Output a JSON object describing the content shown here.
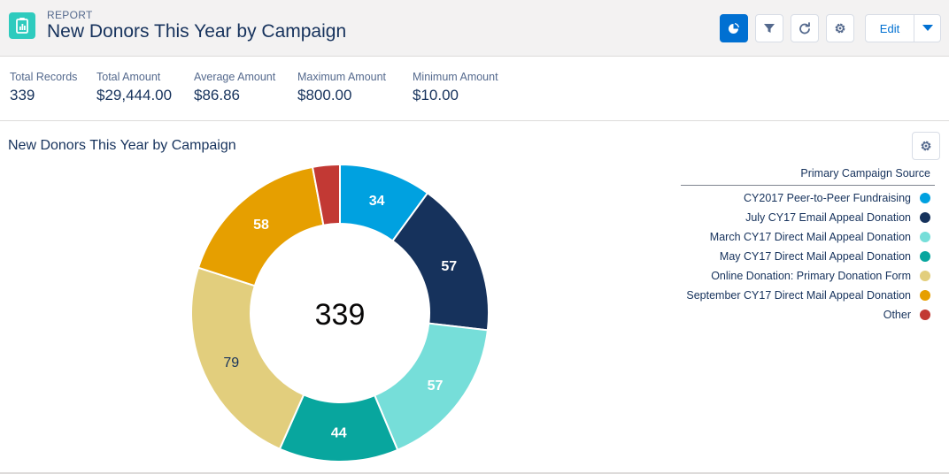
{
  "header": {
    "eyebrow": "REPORT",
    "title": "New Donors This Year by Campaign",
    "edit_label": "Edit",
    "icons": {
      "report": "report-icon",
      "chart_toggle": "pie-chart-icon",
      "filter": "filter-icon",
      "refresh": "refresh-icon",
      "settings": "gear-icon",
      "dropdown": "chevron-down-icon"
    }
  },
  "summary": [
    {
      "label": "Total Records",
      "value": "339"
    },
    {
      "label": "Total Amount",
      "value": "$29,444.00"
    },
    {
      "label": "Average Amount",
      "value": "$86.86"
    },
    {
      "label": "Maximum Amount",
      "value": "$800.00"
    },
    {
      "label": "Minimum Amount",
      "value": "$10.00"
    }
  ],
  "chart_title": "New Donors This Year by Campaign",
  "colors": {
    "accent": "#0070d2",
    "brand_icon": "#2ecbbe"
  },
  "chart_data": {
    "type": "pie",
    "donut": true,
    "center_label": "339",
    "total": 339,
    "legend_title": "Primary Campaign Source",
    "legend_position": "right",
    "slices": [
      {
        "label": "CY2017 Peer-to-Peer Fundraising",
        "value": 34,
        "color": "#00a1e0",
        "text_color": "#ffffff"
      },
      {
        "label": "July CY17 Email Appeal Donation",
        "value": 57,
        "color": "#16325c",
        "text_color": "#ffffff"
      },
      {
        "label": "March CY17 Direct Mail Appeal Donation",
        "value": 57,
        "color": "#76ded9",
        "text_color": "#ffffff"
      },
      {
        "label": "May CY17 Direct Mail Appeal Donation",
        "value": 44,
        "color": "#08a69e",
        "text_color": "#ffffff"
      },
      {
        "label": "Online Donation: Primary Donation Form",
        "value": 79,
        "color": "#e2ce7d",
        "text_color": "#16325c"
      },
      {
        "label": "September CY17 Direct Mail Appeal Donation",
        "value": 58,
        "color": "#e69f00",
        "text_color": "#ffffff"
      },
      {
        "label": "Other",
        "value": 10,
        "color": "#c23934",
        "text_color": "#ffffff",
        "show_label": false
      }
    ]
  }
}
